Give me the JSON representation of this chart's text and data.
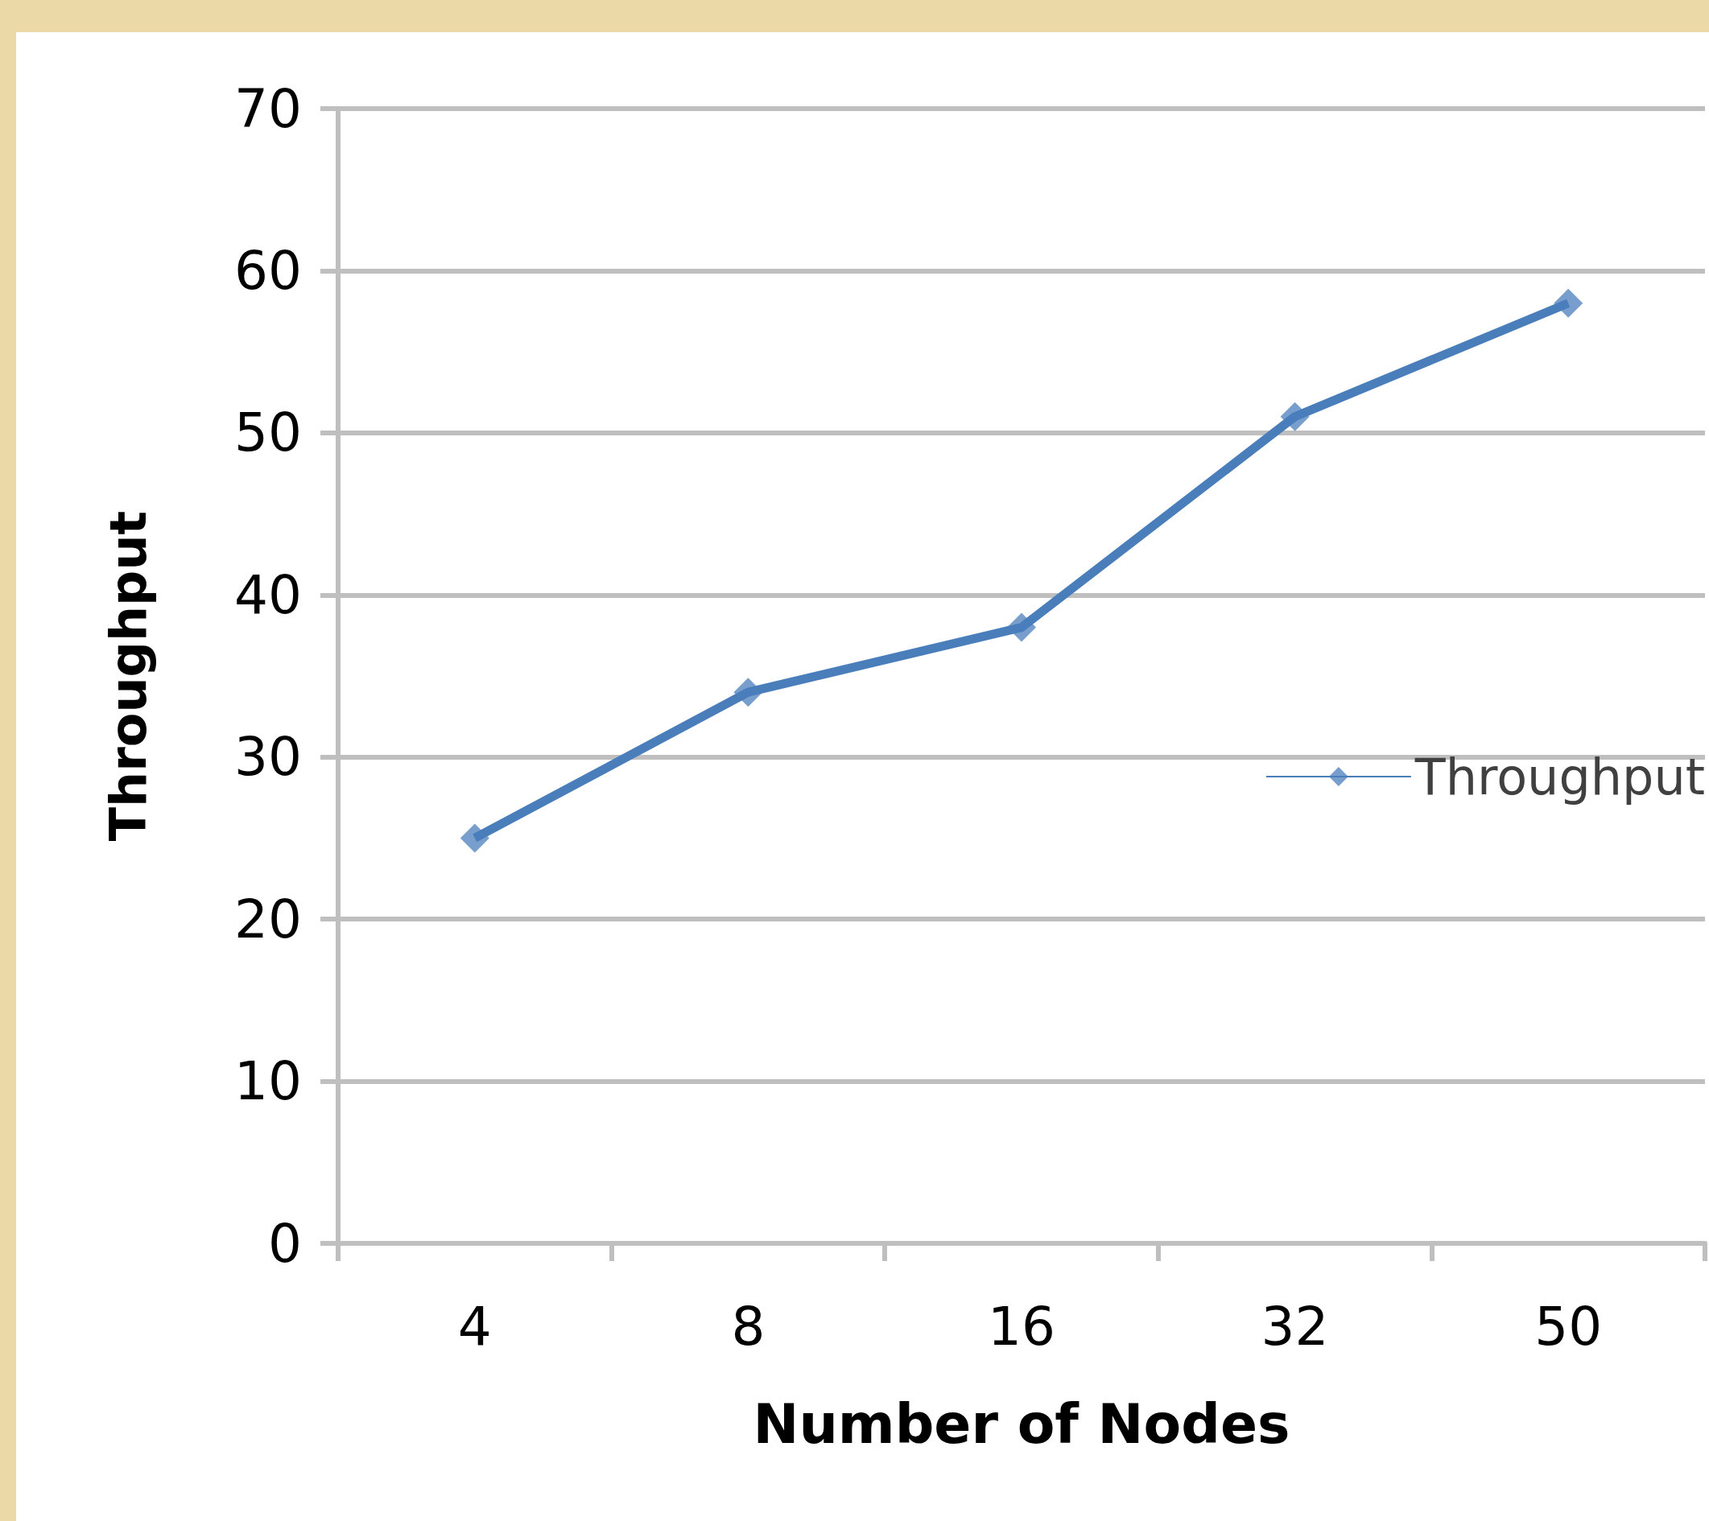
{
  "chart_data": {
    "type": "line",
    "xlabel": "Number of Nodes",
    "ylabel": "Throughput",
    "categories": [
      "4",
      "8",
      "16",
      "32",
      "50"
    ],
    "series": [
      {
        "name": "Throughput",
        "color": "#4a7ebb",
        "values": [
          25,
          34,
          38,
          51,
          58
        ]
      }
    ],
    "ylim": [
      0,
      70
    ],
    "yticks": [
      0,
      10,
      20,
      30,
      40,
      50,
      60,
      70
    ],
    "grid": "y",
    "legend": "right",
    "marker": "diamond",
    "line_style": "solid"
  }
}
